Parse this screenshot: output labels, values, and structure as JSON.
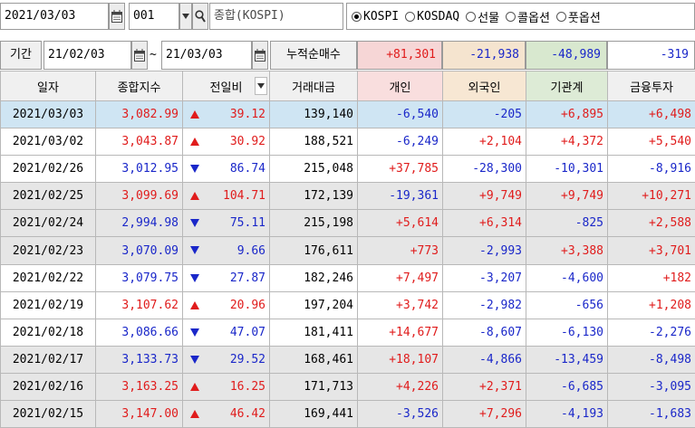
{
  "toolbar": {
    "date_value": "2021/03/03",
    "code_value": "001",
    "index_name": "종합(KOSPI)",
    "radios": [
      {
        "label": "KOSPI",
        "selected": true
      },
      {
        "label": "KOSDAQ",
        "selected": false
      },
      {
        "label": "선물",
        "selected": false
      },
      {
        "label": "콜옵션",
        "selected": false
      },
      {
        "label": "풋옵션",
        "selected": false
      }
    ]
  },
  "period": {
    "label": "기간",
    "from": "21/02/03",
    "sep": "~",
    "to": "21/03/03",
    "cum_label": "누적순매수",
    "cum_individual": "+81,301",
    "cum_foreign": "-21,938",
    "cum_institution": "-48,989",
    "cum_financial": "-319"
  },
  "columns": [
    "일자",
    "종합지수",
    "전일비",
    "거래대금",
    "개인",
    "외국인",
    "기관계",
    "금융투자"
  ],
  "colors": {
    "up": "#e01c1c",
    "down": "#1a27c9",
    "selected_row": "#cfe5f3",
    "band_row": "#e6e6e6",
    "hdr_individual": "#f9dede",
    "hdr_foreign": "#f7e7d3",
    "hdr_institution": "#ddebd6",
    "cum_individual_bg": "#f6d6d6",
    "cum_foreign_bg": "#f5e4cf",
    "cum_institution_bg": "#d8e8cf"
  },
  "rows": [
    {
      "date": "2021/03/03",
      "index": "3,082.99",
      "dir": "up",
      "change": "39.12",
      "amount": "139,140",
      "individual": "-6,540",
      "foreign": "-205",
      "institution": "+6,895",
      "financial": "+6,498"
    },
    {
      "date": "2021/03/02",
      "index": "3,043.87",
      "dir": "up",
      "change": "30.92",
      "amount": "188,521",
      "individual": "-6,249",
      "foreign": "+2,104",
      "institution": "+4,372",
      "financial": "+5,540"
    },
    {
      "date": "2021/02/26",
      "index": "3,012.95",
      "dir": "down",
      "change": "86.74",
      "amount": "215,048",
      "individual": "+37,785",
      "foreign": "-28,300",
      "institution": "-10,301",
      "financial": "-8,916"
    },
    {
      "date": "2021/02/25",
      "index": "3,099.69",
      "dir": "up",
      "change": "104.71",
      "amount": "172,139",
      "individual": "-19,361",
      "foreign": "+9,749",
      "institution": "+9,749",
      "financial": "+10,271"
    },
    {
      "date": "2021/02/24",
      "index": "2,994.98",
      "dir": "down",
      "change": "75.11",
      "amount": "215,198",
      "individual": "+5,614",
      "foreign": "+6,314",
      "institution": "-825",
      "financial": "+2,588"
    },
    {
      "date": "2021/02/23",
      "index": "3,070.09",
      "dir": "down",
      "change": "9.66",
      "amount": "176,611",
      "individual": "+773",
      "foreign": "-2,993",
      "institution": "+3,388",
      "financial": "+3,701"
    },
    {
      "date": "2021/02/22",
      "index": "3,079.75",
      "dir": "down",
      "change": "27.87",
      "amount": "182,246",
      "individual": "+7,497",
      "foreign": "-3,207",
      "institution": "-4,600",
      "financial": "+182"
    },
    {
      "date": "2021/02/19",
      "index": "3,107.62",
      "dir": "up",
      "change": "20.96",
      "amount": "197,204",
      "individual": "+3,742",
      "foreign": "-2,982",
      "institution": "-656",
      "financial": "+1,208"
    },
    {
      "date": "2021/02/18",
      "index": "3,086.66",
      "dir": "down",
      "change": "47.07",
      "amount": "181,411",
      "individual": "+14,677",
      "foreign": "-8,607",
      "institution": "-6,130",
      "financial": "-2,276"
    },
    {
      "date": "2021/02/17",
      "index": "3,133.73",
      "dir": "down",
      "change": "29.52",
      "amount": "168,461",
      "individual": "+18,107",
      "foreign": "-4,866",
      "institution": "-13,459",
      "financial": "-8,498"
    },
    {
      "date": "2021/02/16",
      "index": "3,163.25",
      "dir": "up",
      "change": "16.25",
      "amount": "171,713",
      "individual": "+4,226",
      "foreign": "+2,371",
      "institution": "-6,685",
      "financial": "-3,095"
    },
    {
      "date": "2021/02/15",
      "index": "3,147.00",
      "dir": "up",
      "change": "46.42",
      "amount": "169,441",
      "individual": "-3,526",
      "foreign": "+7,296",
      "institution": "-4,193",
      "financial": "-1,683"
    }
  ]
}
